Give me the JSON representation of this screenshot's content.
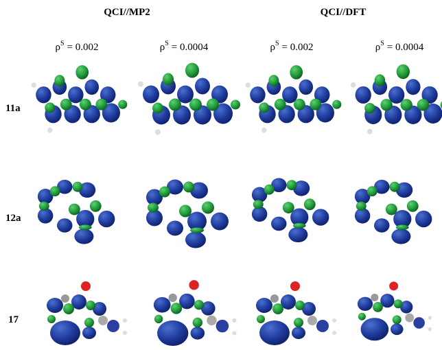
{
  "methods": [
    "QCI//MP2",
    "QCI//DFT"
  ],
  "columns": [
    {
      "symbol": "ρ",
      "superscript": "S",
      "value": "= 0.002"
    },
    {
      "symbol": "ρ",
      "superscript": "S",
      "value": "= 0.0004"
    },
    {
      "symbol": "ρ",
      "superscript": "S",
      "value": "= 0.002"
    },
    {
      "symbol": "ρ",
      "superscript": "S",
      "value": "= 0.0004"
    }
  ],
  "rows": [
    "11a",
    "12a",
    "17"
  ]
}
